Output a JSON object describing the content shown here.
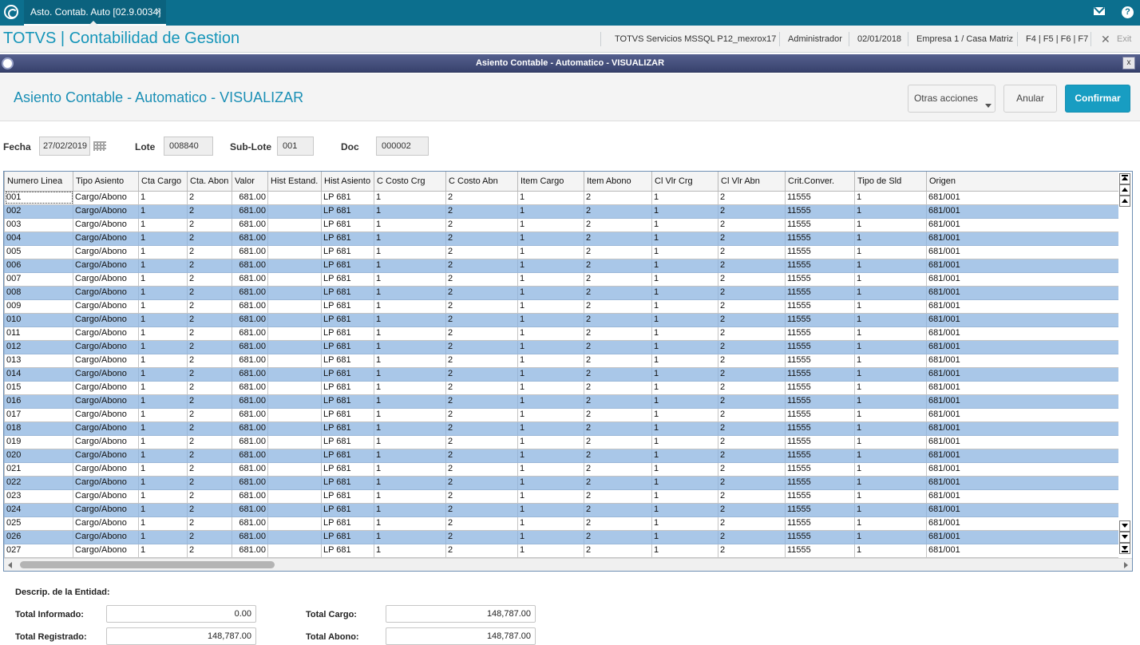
{
  "window": {
    "tab_label": "Asto. Contab. Auto [02.9.0034]",
    "tab_close": "×"
  },
  "header": {
    "brand": "TOTVS | Contabilidad de Gestion",
    "environment": "TOTVS Servicios MSSQL P12_mexrox17",
    "user": "Administrador",
    "date": "02/01/2018",
    "company": "Empresa 1 / Casa Matriz",
    "shortcuts": "F4 | F5 | F6 | F7",
    "exit_label": "Exit"
  },
  "dialog": {
    "title": "Asiento Contable - Automatico - VISUALIZAR",
    "close": "x"
  },
  "page": {
    "title": "Asiento Contable - Automatico - VISUALIZAR",
    "actions": {
      "otras": "Otras acciones",
      "anular": "Anular",
      "confirmar": "Confirmar"
    }
  },
  "fields": {
    "fecha_label": "Fecha",
    "fecha_value": "27/02/2019",
    "lote_label": "Lote",
    "lote_value": "008840",
    "sublote_label": "Sub-Lote",
    "sublote_value": "001",
    "doc_label": "Doc",
    "doc_value": "000002"
  },
  "grid": {
    "columns": [
      "Numero Linea",
      "Tipo Asiento",
      "Cta Cargo",
      "Cta. Abon",
      "Valor",
      "Hist Estand.",
      "Hist Asiento",
      "C Costo Crg",
      "C Costo Abn",
      "Item Cargo",
      "Item Abono",
      "Cl Vlr Crg",
      "Cl Vlr Abn",
      "Crit.Conver.",
      "Tipo de Sld",
      "Origen"
    ],
    "rows": [
      [
        "001",
        "Cargo/Abono",
        "1",
        "2",
        "681.00",
        "",
        "LP 681",
        "1",
        "2",
        "1",
        "2",
        "1",
        "2",
        "11555",
        "1",
        "681/001"
      ],
      [
        "002",
        "Cargo/Abono",
        "1",
        "2",
        "681.00",
        "",
        "LP 681",
        "1",
        "2",
        "1",
        "2",
        "1",
        "2",
        "11555",
        "1",
        "681/001"
      ],
      [
        "003",
        "Cargo/Abono",
        "1",
        "2",
        "681.00",
        "",
        "LP 681",
        "1",
        "2",
        "1",
        "2",
        "1",
        "2",
        "11555",
        "1",
        "681/001"
      ],
      [
        "004",
        "Cargo/Abono",
        "1",
        "2",
        "681.00",
        "",
        "LP 681",
        "1",
        "2",
        "1",
        "2",
        "1",
        "2",
        "11555",
        "1",
        "681/001"
      ],
      [
        "005",
        "Cargo/Abono",
        "1",
        "2",
        "681.00",
        "",
        "LP 681",
        "1",
        "2",
        "1",
        "2",
        "1",
        "2",
        "11555",
        "1",
        "681/001"
      ],
      [
        "006",
        "Cargo/Abono",
        "1",
        "2",
        "681.00",
        "",
        "LP 681",
        "1",
        "2",
        "1",
        "2",
        "1",
        "2",
        "11555",
        "1",
        "681/001"
      ],
      [
        "007",
        "Cargo/Abono",
        "1",
        "2",
        "681.00",
        "",
        "LP 681",
        "1",
        "2",
        "1",
        "2",
        "1",
        "2",
        "11555",
        "1",
        "681/001"
      ],
      [
        "008",
        "Cargo/Abono",
        "1",
        "2",
        "681.00",
        "",
        "LP 681",
        "1",
        "2",
        "1",
        "2",
        "1",
        "2",
        "11555",
        "1",
        "681/001"
      ],
      [
        "009",
        "Cargo/Abono",
        "1",
        "2",
        "681.00",
        "",
        "LP 681",
        "1",
        "2",
        "1",
        "2",
        "1",
        "2",
        "11555",
        "1",
        "681/001"
      ],
      [
        "010",
        "Cargo/Abono",
        "1",
        "2",
        "681.00",
        "",
        "LP 681",
        "1",
        "2",
        "1",
        "2",
        "1",
        "2",
        "11555",
        "1",
        "681/001"
      ],
      [
        "011",
        "Cargo/Abono",
        "1",
        "2",
        "681.00",
        "",
        "LP 681",
        "1",
        "2",
        "1",
        "2",
        "1",
        "2",
        "11555",
        "1",
        "681/001"
      ],
      [
        "012",
        "Cargo/Abono",
        "1",
        "2",
        "681.00",
        "",
        "LP 681",
        "1",
        "2",
        "1",
        "2",
        "1",
        "2",
        "11555",
        "1",
        "681/001"
      ],
      [
        "013",
        "Cargo/Abono",
        "1",
        "2",
        "681.00",
        "",
        "LP 681",
        "1",
        "2",
        "1",
        "2",
        "1",
        "2",
        "11555",
        "1",
        "681/001"
      ],
      [
        "014",
        "Cargo/Abono",
        "1",
        "2",
        "681.00",
        "",
        "LP 681",
        "1",
        "2",
        "1",
        "2",
        "1",
        "2",
        "11555",
        "1",
        "681/001"
      ],
      [
        "015",
        "Cargo/Abono",
        "1",
        "2",
        "681.00",
        "",
        "LP 681",
        "1",
        "2",
        "1",
        "2",
        "1",
        "2",
        "11555",
        "1",
        "681/001"
      ],
      [
        "016",
        "Cargo/Abono",
        "1",
        "2",
        "681.00",
        "",
        "LP 681",
        "1",
        "2",
        "1",
        "2",
        "1",
        "2",
        "11555",
        "1",
        "681/001"
      ],
      [
        "017",
        "Cargo/Abono",
        "1",
        "2",
        "681.00",
        "",
        "LP 681",
        "1",
        "2",
        "1",
        "2",
        "1",
        "2",
        "11555",
        "1",
        "681/001"
      ],
      [
        "018",
        "Cargo/Abono",
        "1",
        "2",
        "681.00",
        "",
        "LP 681",
        "1",
        "2",
        "1",
        "2",
        "1",
        "2",
        "11555",
        "1",
        "681/001"
      ],
      [
        "019",
        "Cargo/Abono",
        "1",
        "2",
        "681.00",
        "",
        "LP 681",
        "1",
        "2",
        "1",
        "2",
        "1",
        "2",
        "11555",
        "1",
        "681/001"
      ],
      [
        "020",
        "Cargo/Abono",
        "1",
        "2",
        "681.00",
        "",
        "LP 681",
        "1",
        "2",
        "1",
        "2",
        "1",
        "2",
        "11555",
        "1",
        "681/001"
      ],
      [
        "021",
        "Cargo/Abono",
        "1",
        "2",
        "681.00",
        "",
        "LP 681",
        "1",
        "2",
        "1",
        "2",
        "1",
        "2",
        "11555",
        "1",
        "681/001"
      ],
      [
        "022",
        "Cargo/Abono",
        "1",
        "2",
        "681.00",
        "",
        "LP 681",
        "1",
        "2",
        "1",
        "2",
        "1",
        "2",
        "11555",
        "1",
        "681/001"
      ],
      [
        "023",
        "Cargo/Abono",
        "1",
        "2",
        "681.00",
        "",
        "LP 681",
        "1",
        "2",
        "1",
        "2",
        "1",
        "2",
        "11555",
        "1",
        "681/001"
      ],
      [
        "024",
        "Cargo/Abono",
        "1",
        "2",
        "681.00",
        "",
        "LP 681",
        "1",
        "2",
        "1",
        "2",
        "1",
        "2",
        "11555",
        "1",
        "681/001"
      ],
      [
        "025",
        "Cargo/Abono",
        "1",
        "2",
        "681.00",
        "",
        "LP 681",
        "1",
        "2",
        "1",
        "2",
        "1",
        "2",
        "11555",
        "1",
        "681/001"
      ],
      [
        "026",
        "Cargo/Abono",
        "1",
        "2",
        "681.00",
        "",
        "LP 681",
        "1",
        "2",
        "1",
        "2",
        "1",
        "2",
        "11555",
        "1",
        "681/001"
      ],
      [
        "027",
        "Cargo/Abono",
        "1",
        "2",
        "681.00",
        "",
        "LP 681",
        "1",
        "2",
        "1",
        "2",
        "1",
        "2",
        "11555",
        "1",
        "681/001"
      ]
    ]
  },
  "summary": {
    "descrip_label": "Descrip. de la Entidad:",
    "total_informado_label": "Total Informado:",
    "total_informado_value": "0.00",
    "total_registrado_label": "Total Registrado:",
    "total_registrado_value": "148,787.00",
    "total_cargo_label": "Total Cargo:",
    "total_cargo_value": "148,787.00",
    "total_abono_label": "Total Abono:",
    "total_abono_value": "148,787.00"
  },
  "colors": {
    "brand": "#1595b9",
    "appbar": "#0c6f8e",
    "confirm_button": "#189dc2",
    "alt_row": "#a9c7e8"
  },
  "icons": [
    "totvs-logo-icon",
    "mail-icon",
    "help-icon",
    "close-icon",
    "calendar-icon",
    "chevron-down-icon"
  ]
}
